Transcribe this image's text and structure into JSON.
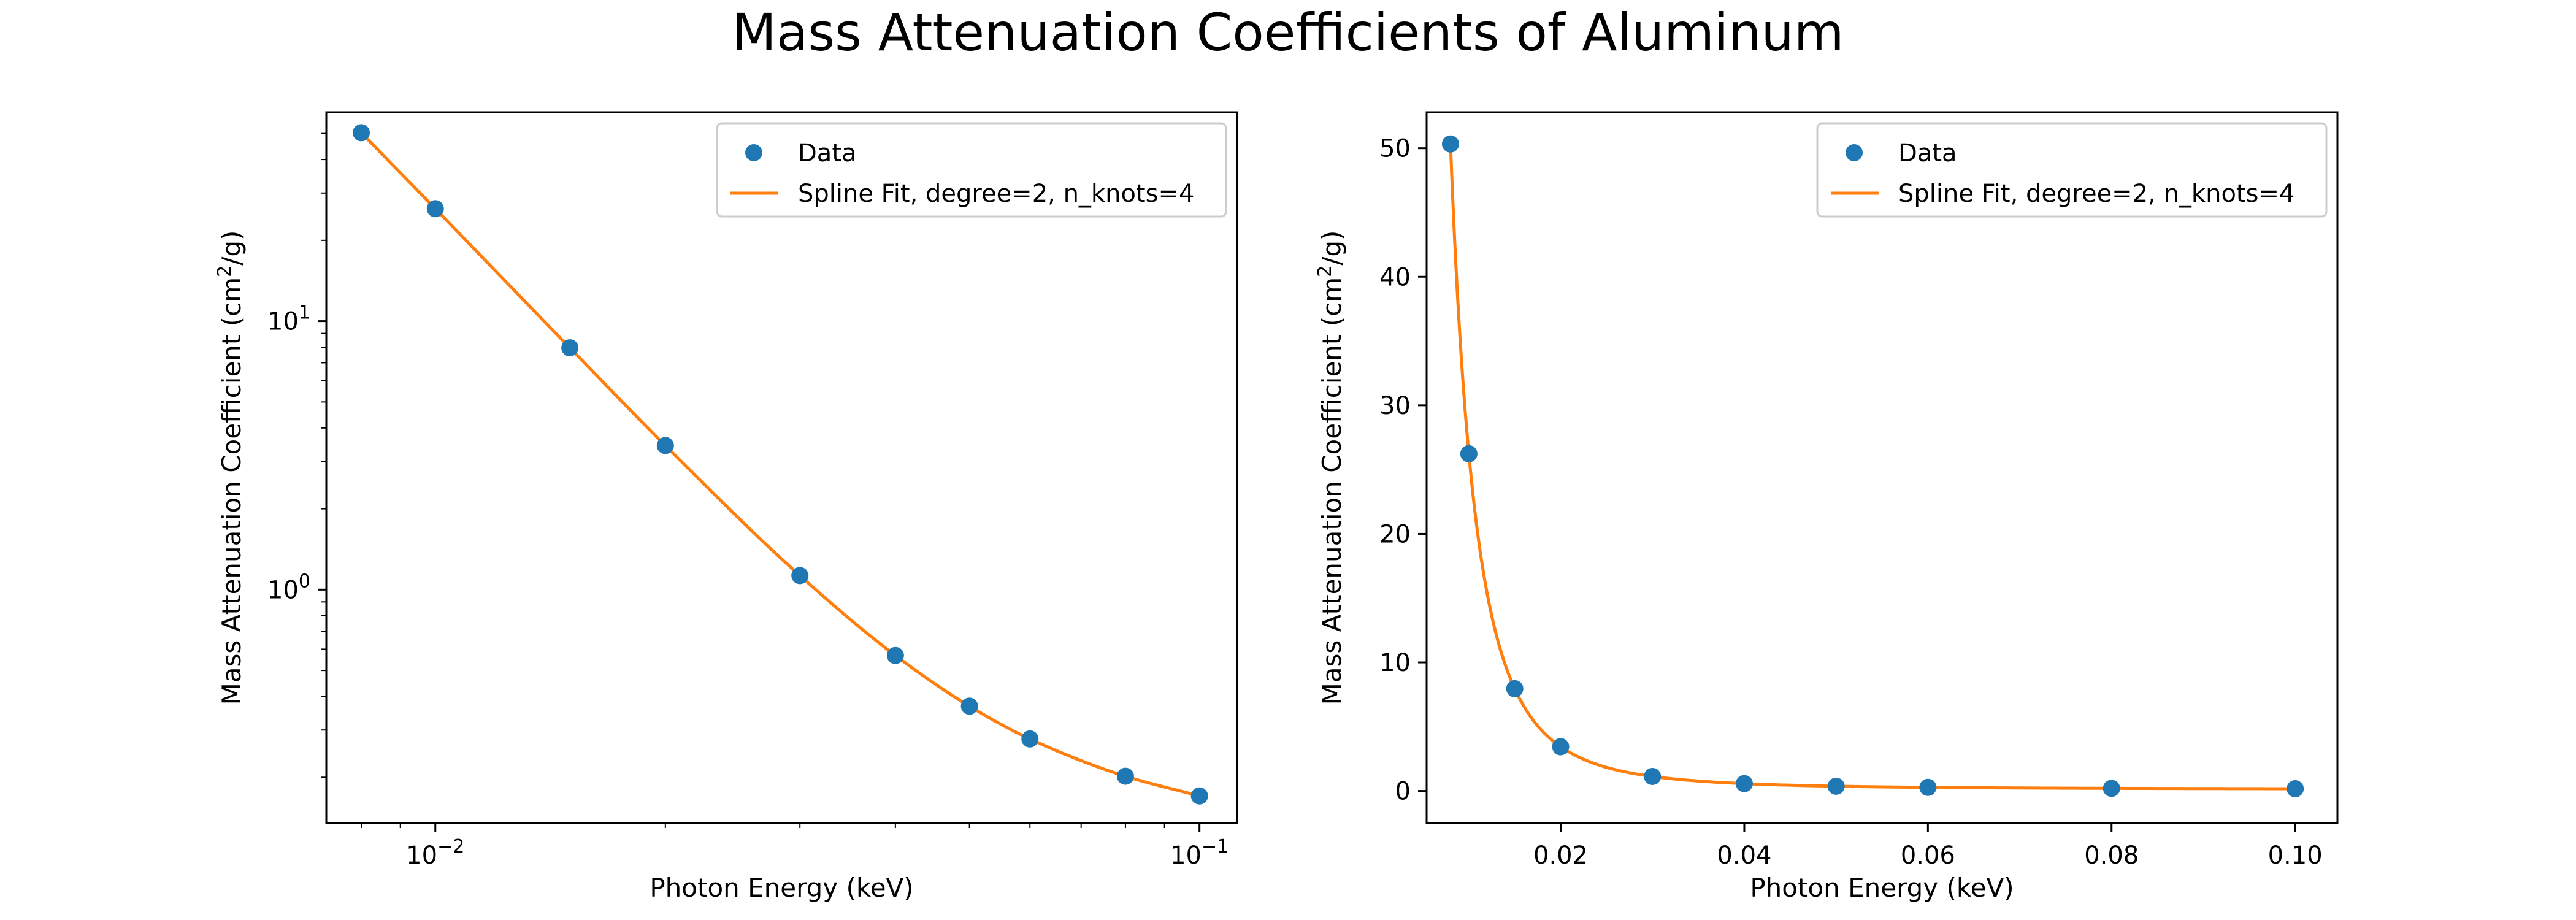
{
  "figure": {
    "title": "Mass Attenuation Coefficients of Aluminum"
  },
  "colors": {
    "data_marker": "#1f77b4",
    "fit_line": "#ff7f0e"
  },
  "chart_data": [
    {
      "type": "line",
      "xlabel": "Photon Energy (keV)",
      "ylabel_main": "Mass Attenuation Coefficient (cm",
      "ylabel_sup": "2",
      "ylabel_tail": "/g)",
      "xscale": "log",
      "yscale": "log",
      "xlim": [
        0.0072,
        0.112
      ],
      "ylim": [
        0.135,
        60
      ],
      "grid": false,
      "legend_position": "upper right",
      "x_ticks": [
        {
          "value": 0.01,
          "base": "10",
          "exp": "−2"
        },
        {
          "value": 0.1,
          "base": "10",
          "exp": "−1"
        }
      ],
      "y_ticks": [
        {
          "value": 1,
          "base": "10",
          "exp": "0"
        },
        {
          "value": 10,
          "base": "10",
          "exp": "1"
        }
      ],
      "series": [
        {
          "name": "Data",
          "kind": "scatter",
          "x": [
            0.008,
            0.01,
            0.015,
            0.02,
            0.03,
            0.04,
            0.05,
            0.06,
            0.08,
            0.1
          ],
          "y": [
            50.33,
            26.23,
            7.955,
            3.441,
            1.128,
            0.5685,
            0.3681,
            0.2778,
            0.2018,
            0.1704
          ]
        },
        {
          "name": "Spline Fit, degree=2, n_knots=4",
          "kind": "line"
        }
      ]
    },
    {
      "type": "line",
      "xlabel": "Photon Energy (keV)",
      "ylabel_main": "Mass Attenuation Coefficient (cm",
      "ylabel_sup": "2",
      "ylabel_tail": "/g)",
      "xscale": "linear",
      "yscale": "linear",
      "xlim": [
        0.0054,
        0.1046
      ],
      "ylim": [
        -2.5,
        52.8
      ],
      "grid": false,
      "legend_position": "upper right",
      "x_ticks": [
        {
          "value": 0.02,
          "label": "0.02"
        },
        {
          "value": 0.04,
          "label": "0.04"
        },
        {
          "value": 0.06,
          "label": "0.06"
        },
        {
          "value": 0.08,
          "label": "0.08"
        },
        {
          "value": 0.1,
          "label": "0.10"
        }
      ],
      "y_ticks": [
        {
          "value": 0,
          "label": "0"
        },
        {
          "value": 10,
          "label": "10"
        },
        {
          "value": 20,
          "label": "20"
        },
        {
          "value": 30,
          "label": "30"
        },
        {
          "value": 40,
          "label": "40"
        },
        {
          "value": 50,
          "label": "50"
        }
      ],
      "series": [
        {
          "name": "Data",
          "kind": "scatter",
          "x": [
            0.008,
            0.01,
            0.015,
            0.02,
            0.03,
            0.04,
            0.05,
            0.06,
            0.08,
            0.1
          ],
          "y": [
            50.33,
            26.23,
            7.955,
            3.441,
            1.128,
            0.5685,
            0.3681,
            0.2778,
            0.2018,
            0.1704
          ]
        },
        {
          "name": "Spline Fit, degree=2, n_knots=4",
          "kind": "line"
        }
      ]
    }
  ]
}
